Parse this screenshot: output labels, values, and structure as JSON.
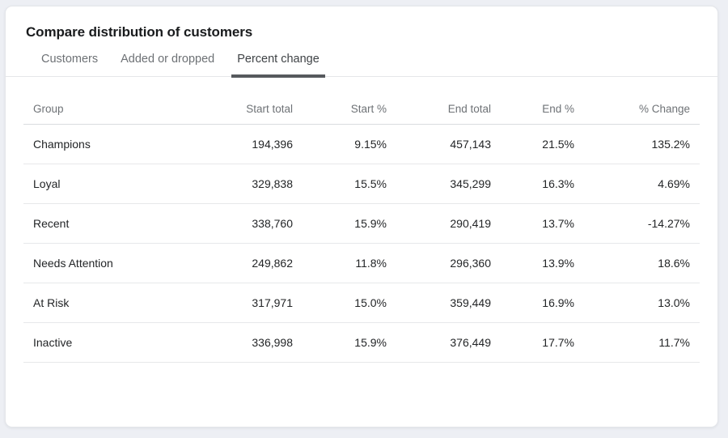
{
  "card": {
    "title": "Compare distribution of customers",
    "active_tab": "Percent change",
    "tabs": [
      {
        "label": "Customers"
      },
      {
        "label": "Added or dropped"
      },
      {
        "label": "Percent change"
      }
    ]
  },
  "table": {
    "columns": [
      "Group",
      "Start total",
      "Start %",
      "End total",
      "End %",
      "% Change"
    ],
    "rows": [
      {
        "group": "Champions",
        "start_total": "194,396",
        "start_pct": "9.15%",
        "end_total": "457,143",
        "end_pct": "21.5%",
        "pct_change": "135.2%"
      },
      {
        "group": "Loyal",
        "start_total": "329,838",
        "start_pct": "15.5%",
        "end_total": "345,299",
        "end_pct": "16.3%",
        "pct_change": "4.69%"
      },
      {
        "group": "Recent",
        "start_total": "338,760",
        "start_pct": "15.9%",
        "end_total": "290,419",
        "end_pct": "13.7%",
        "pct_change": "-14.27%"
      },
      {
        "group": "Needs Attention",
        "start_total": "249,862",
        "start_pct": "11.8%",
        "end_total": "296,360",
        "end_pct": "13.9%",
        "pct_change": "18.6%"
      },
      {
        "group": "At Risk",
        "start_total": "317,971",
        "start_pct": "15.0%",
        "end_total": "359,449",
        "end_pct": "16.9%",
        "pct_change": "13.0%"
      },
      {
        "group": "Inactive",
        "start_total": "336,998",
        "start_pct": "15.9%",
        "end_total": "376,449",
        "end_pct": "17.7%",
        "pct_change": "11.7%"
      }
    ]
  },
  "colors": {
    "page_background": "#edeff4",
    "card_background": "#ffffff",
    "card_border": "#e4e6ea",
    "active_tab_underline": "#56595d",
    "inactive_tab_text": "#6d7175",
    "active_tab_text": "#3f4346",
    "header_text": "#6e7276",
    "cell_text": "#232527",
    "divider": "#e7e8ea"
  }
}
